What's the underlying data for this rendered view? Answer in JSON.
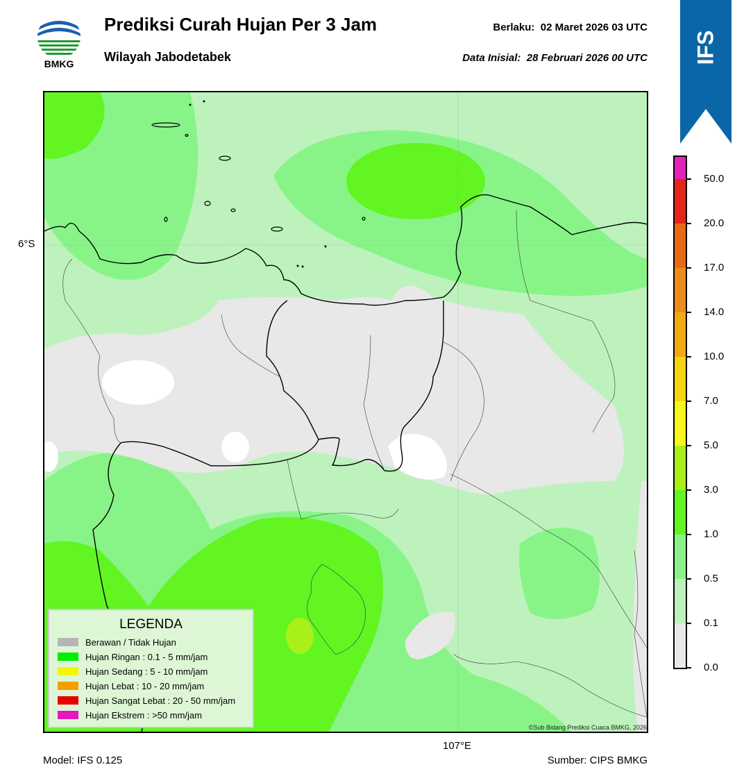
{
  "header": {
    "logo_text": "BMKG",
    "title": "Prediksi Curah Hujan Per 3 Jam",
    "subtitle": "Wilayah Jabodetabek",
    "valid_label": "Berlaku:",
    "valid_value": "02 Maret 2026 03 UTC",
    "initial_label": "Data Inisial:",
    "initial_value": "28 Februari 2026 00 UTC"
  },
  "ribbon": {
    "text": "IFS",
    "color": "#0a67a7"
  },
  "map": {
    "lat_label": "6°S",
    "lon_label": "107°E",
    "credit": "©Sub Bidang Prediksi Cuaca BMKG, 2026"
  },
  "footer": {
    "model": "Model: IFS 0.125",
    "source": "Sumber: CIPS BMKG"
  },
  "legend": {
    "title": "LEGENDA",
    "items": [
      {
        "label": "Berawan / Tidak Hujan",
        "color": "#b5b5b5"
      },
      {
        "label": "Hujan Ringan : 0.1 - 5 mm/jam",
        "color": "#00ef00"
      },
      {
        "label": "Hujan Sedang : 5 - 10 mm/jam",
        "color": "#f4f700"
      },
      {
        "label": "Hujan Lebat : 10 - 20 mm/jam",
        "color": "#f59e00"
      },
      {
        "label": "Hujan Sangat Lebat : 20 - 50 mm/jam",
        "color": "#e80000"
      },
      {
        "label": "Hujan Ekstrem : >50 mm/jam",
        "color": "#e617be"
      }
    ]
  },
  "colorbar": {
    "ticks": [
      "0.0",
      "0.1",
      "0.5",
      "1.0",
      "3.0",
      "5.0",
      "7.0",
      "10.0",
      "14.0",
      "17.0",
      "20.0",
      "50.0"
    ],
    "colors": [
      "#e8e8e8",
      "#bdf2bd",
      "#88f488",
      "#62f522",
      "#a9f01a",
      "#f7f71d",
      "#f5d410",
      "#f0aa14",
      "#ec8c1a",
      "#e86a18",
      "#e42618",
      "#e322be"
    ]
  }
}
